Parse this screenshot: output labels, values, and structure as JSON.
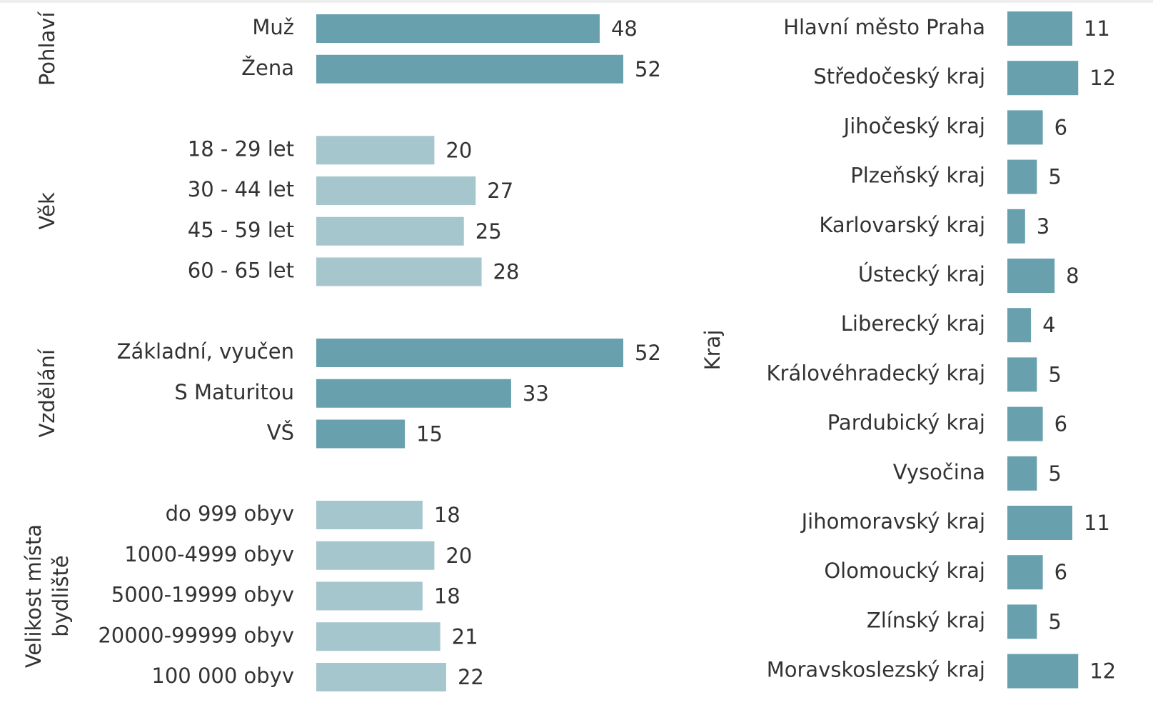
{
  "chart_data": [
    {
      "type": "bar",
      "orientation": "horizontal",
      "groups": [
        {
          "name": "Pohlaví",
          "color": "#68a0ae",
          "categories": [
            "Muž",
            "Žena"
          ],
          "values": [
            48,
            52
          ]
        },
        {
          "name": "Věk",
          "color": "#a6c6cd",
          "categories": [
            "18 - 29 let",
            "30 - 44 let",
            "45 - 59 let",
            "60 - 65 let"
          ],
          "values": [
            20,
            27,
            25,
            28
          ]
        },
        {
          "name": "Vzdělání",
          "color": "#68a0ae",
          "categories": [
            "Základní, vyučen",
            "S Maturitou",
            "VŠ"
          ],
          "values": [
            52,
            33,
            15
          ]
        },
        {
          "name": "Velikost místa bydliště",
          "color": "#a6c6cd",
          "categories": [
            "do 999 obyv",
            "1000-4999 obyv",
            "5000-19999 obyv",
            "20000-99999 obyv",
            "100 000 obyv"
          ],
          "values": [
            18,
            20,
            18,
            21,
            22
          ]
        }
      ]
    },
    {
      "type": "bar",
      "orientation": "horizontal",
      "axis_label": "Kraj",
      "color": "#68a0ae",
      "categories": [
        "Hlavní město Praha",
        "Středočeský kraj",
        "Jihočeský kraj",
        "Plzeňský kraj",
        "Karlovarský kraj",
        "Ústecký kraj",
        "Liberecký kraj",
        "Královéhradecký kraj",
        "Pardubický kraj",
        "Vysočina",
        "Jihomoravský kraj",
        "Olomoucký kraj",
        "Zlínský kraj",
        "Moravskoslezský kraj"
      ],
      "values": [
        11,
        12,
        6,
        5,
        3,
        8,
        4,
        5,
        6,
        5,
        11,
        6,
        5,
        12
      ]
    }
  ]
}
